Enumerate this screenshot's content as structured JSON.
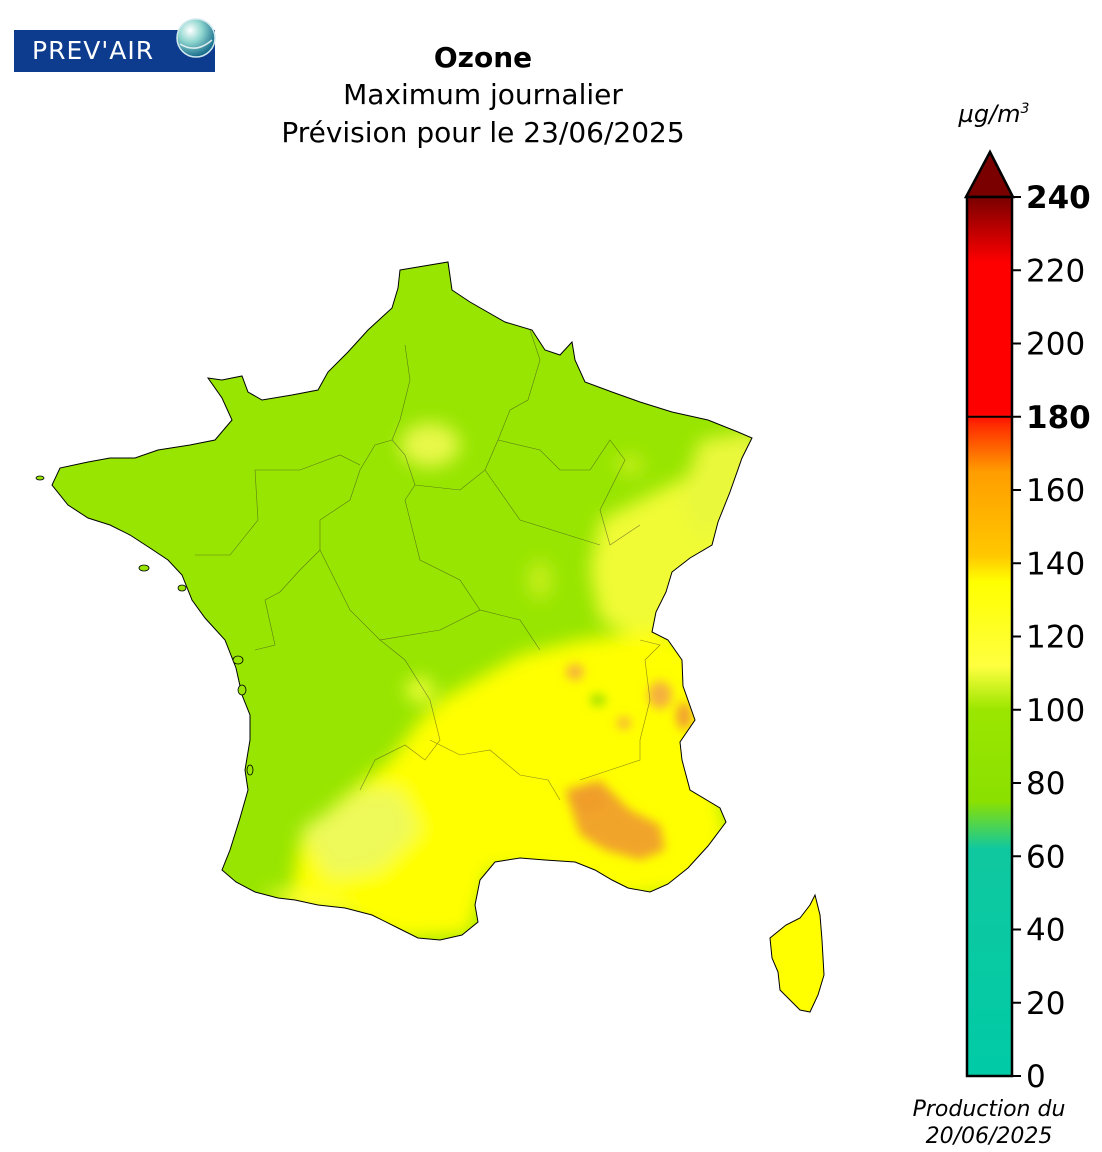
{
  "logo": {
    "text": "PREV'AIR"
  },
  "title": {
    "main": "Ozone",
    "line2": "Maximum journalier",
    "line3": "Prévision pour le 23/06/2025"
  },
  "colorbar": {
    "unit_prefix": "µg/m",
    "unit_exponent": "3",
    "ticks": [
      {
        "value": 0,
        "label": "0",
        "bold": false
      },
      {
        "value": 20,
        "label": "20",
        "bold": false
      },
      {
        "value": 40,
        "label": "40",
        "bold": false
      },
      {
        "value": 60,
        "label": "60",
        "bold": false
      },
      {
        "value": 80,
        "label": "80",
        "bold": false
      },
      {
        "value": 100,
        "label": "100",
        "bold": false
      },
      {
        "value": 120,
        "label": "120",
        "bold": false
      },
      {
        "value": 140,
        "label": "140",
        "bold": false
      },
      {
        "value": 160,
        "label": "160",
        "bold": false
      },
      {
        "value": 180,
        "label": "180",
        "bold": true
      },
      {
        "value": 200,
        "label": "200",
        "bold": false
      },
      {
        "value": 220,
        "label": "220",
        "bold": false
      },
      {
        "value": 240,
        "label": "240",
        "bold": true
      }
    ],
    "min": 0,
    "max": 240,
    "threshold": 180,
    "stops": [
      {
        "value": 0,
        "color": "#00cba6"
      },
      {
        "value": 62,
        "color": "#10c8a0"
      },
      {
        "value": 75,
        "color": "#8be000"
      },
      {
        "value": 100,
        "color": "#9be600"
      },
      {
        "value": 112,
        "color": "#ffff40"
      },
      {
        "value": 135,
        "color": "#ffff00"
      },
      {
        "value": 142,
        "color": "#ffc800"
      },
      {
        "value": 165,
        "color": "#ff9d00"
      },
      {
        "value": 178,
        "color": "#ff2a00"
      },
      {
        "value": 181,
        "color": "#ff0000"
      },
      {
        "value": 222,
        "color": "#ff0000"
      },
      {
        "value": 240,
        "color": "#7a0000"
      }
    ],
    "extend_color": "#7a0000"
  },
  "map": {
    "colors": {
      "green": "#97e500",
      "light_green": "#c7ef1c",
      "yellow": "#ffff00",
      "light_yellow": "#f4ff3a",
      "orange": "#f5a623",
      "dark_orange": "#ef9a2a"
    }
  },
  "production": {
    "line1": "Production du",
    "line2": "20/06/2025"
  }
}
